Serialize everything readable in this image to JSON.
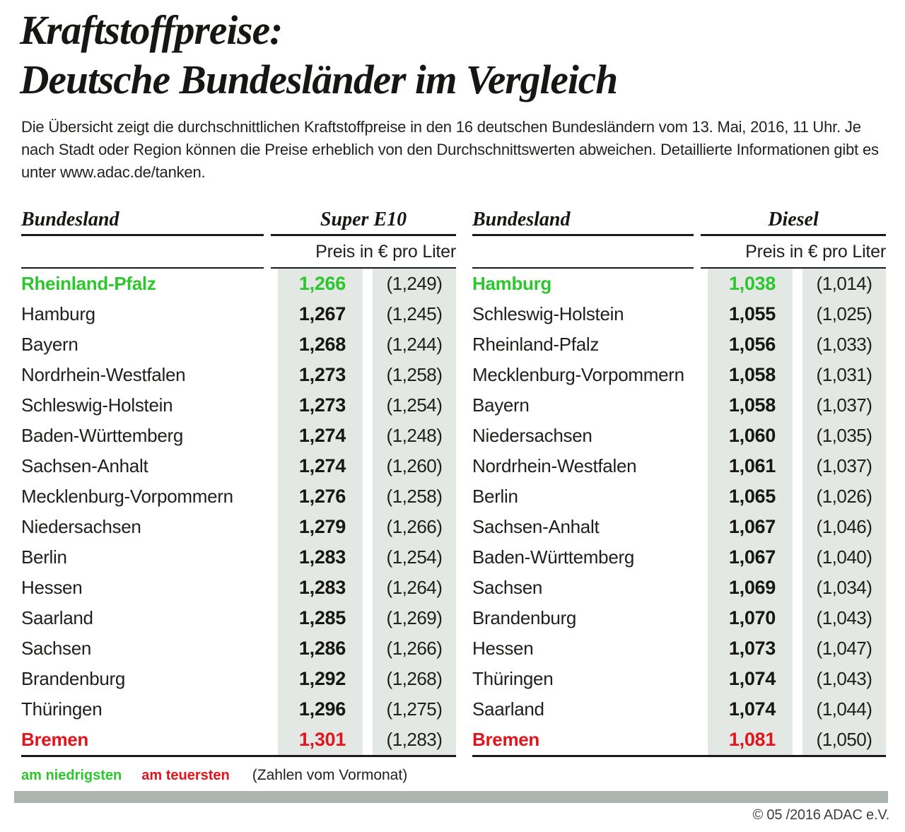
{
  "title": {
    "line1": "Kraftstoffpreise:",
    "line2": "Deutsche Bundesländer im Vergleich"
  },
  "intro": "Die Übersicht zeigt die durchschnittlichen Kraftstoffpreise in den 16 deutschen Bundesländern vom 13. Mai, 2016, 11 Uhr. Je nach Stadt oder Region können die Preise erheblich von den Durchschnittswerten abweichen. Detaillierte Informationen gibt es unter www.adac.de/tanken.",
  "legend": {
    "lowest_label": "am niedrigsten",
    "highest_label": "am teuersten",
    "note": "(Zahlen vom Vormonat)"
  },
  "footer": {
    "copyright": "© 05 /2016 ADAC e.V."
  },
  "colors": {
    "lowest_green": "#2cc72c",
    "highest_red": "#e2141c",
    "stripe_gray": "#e3e8e5",
    "footer_bar_gray": "#adb5b1"
  },
  "chart_data": {
    "type": "table",
    "tables": [
      {
        "bundesland_label": "Bundesland",
        "fuel_label": "Super E10",
        "unit_label": "Preis in € pro Liter",
        "rows": [
          {
            "name": "Rheinland-Pfalz",
            "value": "1,266",
            "prev": "(1,249)",
            "highlight": "lowest"
          },
          {
            "name": "Hamburg",
            "value": "1,267",
            "prev": "(1,245)",
            "highlight": "none"
          },
          {
            "name": "Bayern",
            "value": "1,268",
            "prev": "(1,244)",
            "highlight": "none"
          },
          {
            "name": "Nordrhein-Westfalen",
            "value": "1,273",
            "prev": "(1,258)",
            "highlight": "none"
          },
          {
            "name": "Schleswig-Holstein",
            "value": "1,273",
            "prev": "(1,254)",
            "highlight": "none"
          },
          {
            "name": "Baden-Württemberg",
            "value": "1,274",
            "prev": "(1,248)",
            "highlight": "none"
          },
          {
            "name": "Sachsen-Anhalt",
            "value": "1,274",
            "prev": "(1,260)",
            "highlight": "none"
          },
          {
            "name": "Mecklenburg-Vorpommern",
            "value": "1,276",
            "prev": "(1,258)",
            "highlight": "none"
          },
          {
            "name": "Niedersachsen",
            "value": "1,279",
            "prev": "(1,266)",
            "highlight": "none"
          },
          {
            "name": "Berlin",
            "value": "1,283",
            "prev": "(1,254)",
            "highlight": "none"
          },
          {
            "name": "Hessen",
            "value": "1,283",
            "prev": "(1,264)",
            "highlight": "none"
          },
          {
            "name": "Saarland",
            "value": "1,285",
            "prev": "(1,269)",
            "highlight": "none"
          },
          {
            "name": "Sachsen",
            "value": "1,286",
            "prev": "(1,266)",
            "highlight": "none"
          },
          {
            "name": "Brandenburg",
            "value": "1,292",
            "prev": "(1,268)",
            "highlight": "none"
          },
          {
            "name": "Thüringen",
            "value": "1,296",
            "prev": "(1,275)",
            "highlight": "none"
          },
          {
            "name": "Bremen",
            "value": "1,301",
            "prev": "(1,283)",
            "highlight": "highest"
          }
        ]
      },
      {
        "bundesland_label": "Bundesland",
        "fuel_label": "Diesel",
        "unit_label": "Preis in € pro Liter",
        "rows": [
          {
            "name": "Hamburg",
            "value": "1,038",
            "prev": "(1,014)",
            "highlight": "lowest"
          },
          {
            "name": "Schleswig-Holstein",
            "value": "1,055",
            "prev": "(1,025)",
            "highlight": "none"
          },
          {
            "name": "Rheinland-Pfalz",
            "value": "1,056",
            "prev": "(1,033)",
            "highlight": "none"
          },
          {
            "name": "Mecklenburg-Vorpommern",
            "value": "1,058",
            "prev": "(1,031)",
            "highlight": "none"
          },
          {
            "name": "Bayern",
            "value": "1,058",
            "prev": "(1,037)",
            "highlight": "none"
          },
          {
            "name": "Niedersachsen",
            "value": "1,060",
            "prev": "(1,035)",
            "highlight": "none"
          },
          {
            "name": "Nordrhein-Westfalen",
            "value": "1,061",
            "prev": "(1,037)",
            "highlight": "none"
          },
          {
            "name": "Berlin",
            "value": "1,065",
            "prev": "(1,026)",
            "highlight": "none"
          },
          {
            "name": "Sachsen-Anhalt",
            "value": "1,067",
            "prev": "(1,046)",
            "highlight": "none"
          },
          {
            "name": "Baden-Württemberg",
            "value": "1,067",
            "prev": "(1,040)",
            "highlight": "none"
          },
          {
            "name": "Sachsen",
            "value": "1,069",
            "prev": "(1,034)",
            "highlight": "none"
          },
          {
            "name": "Brandenburg",
            "value": "1,070",
            "prev": "(1,043)",
            "highlight": "none"
          },
          {
            "name": "Hessen",
            "value": "1,073",
            "prev": "(1,047)",
            "highlight": "none"
          },
          {
            "name": "Thüringen",
            "value": "1,074",
            "prev": "(1,043)",
            "highlight": "none"
          },
          {
            "name": "Saarland",
            "value": "1,074",
            "prev": "(1,044)",
            "highlight": "none"
          },
          {
            "name": "Bremen",
            "value": "1,081",
            "prev": "(1,050)",
            "highlight": "highest"
          }
        ]
      }
    ]
  }
}
